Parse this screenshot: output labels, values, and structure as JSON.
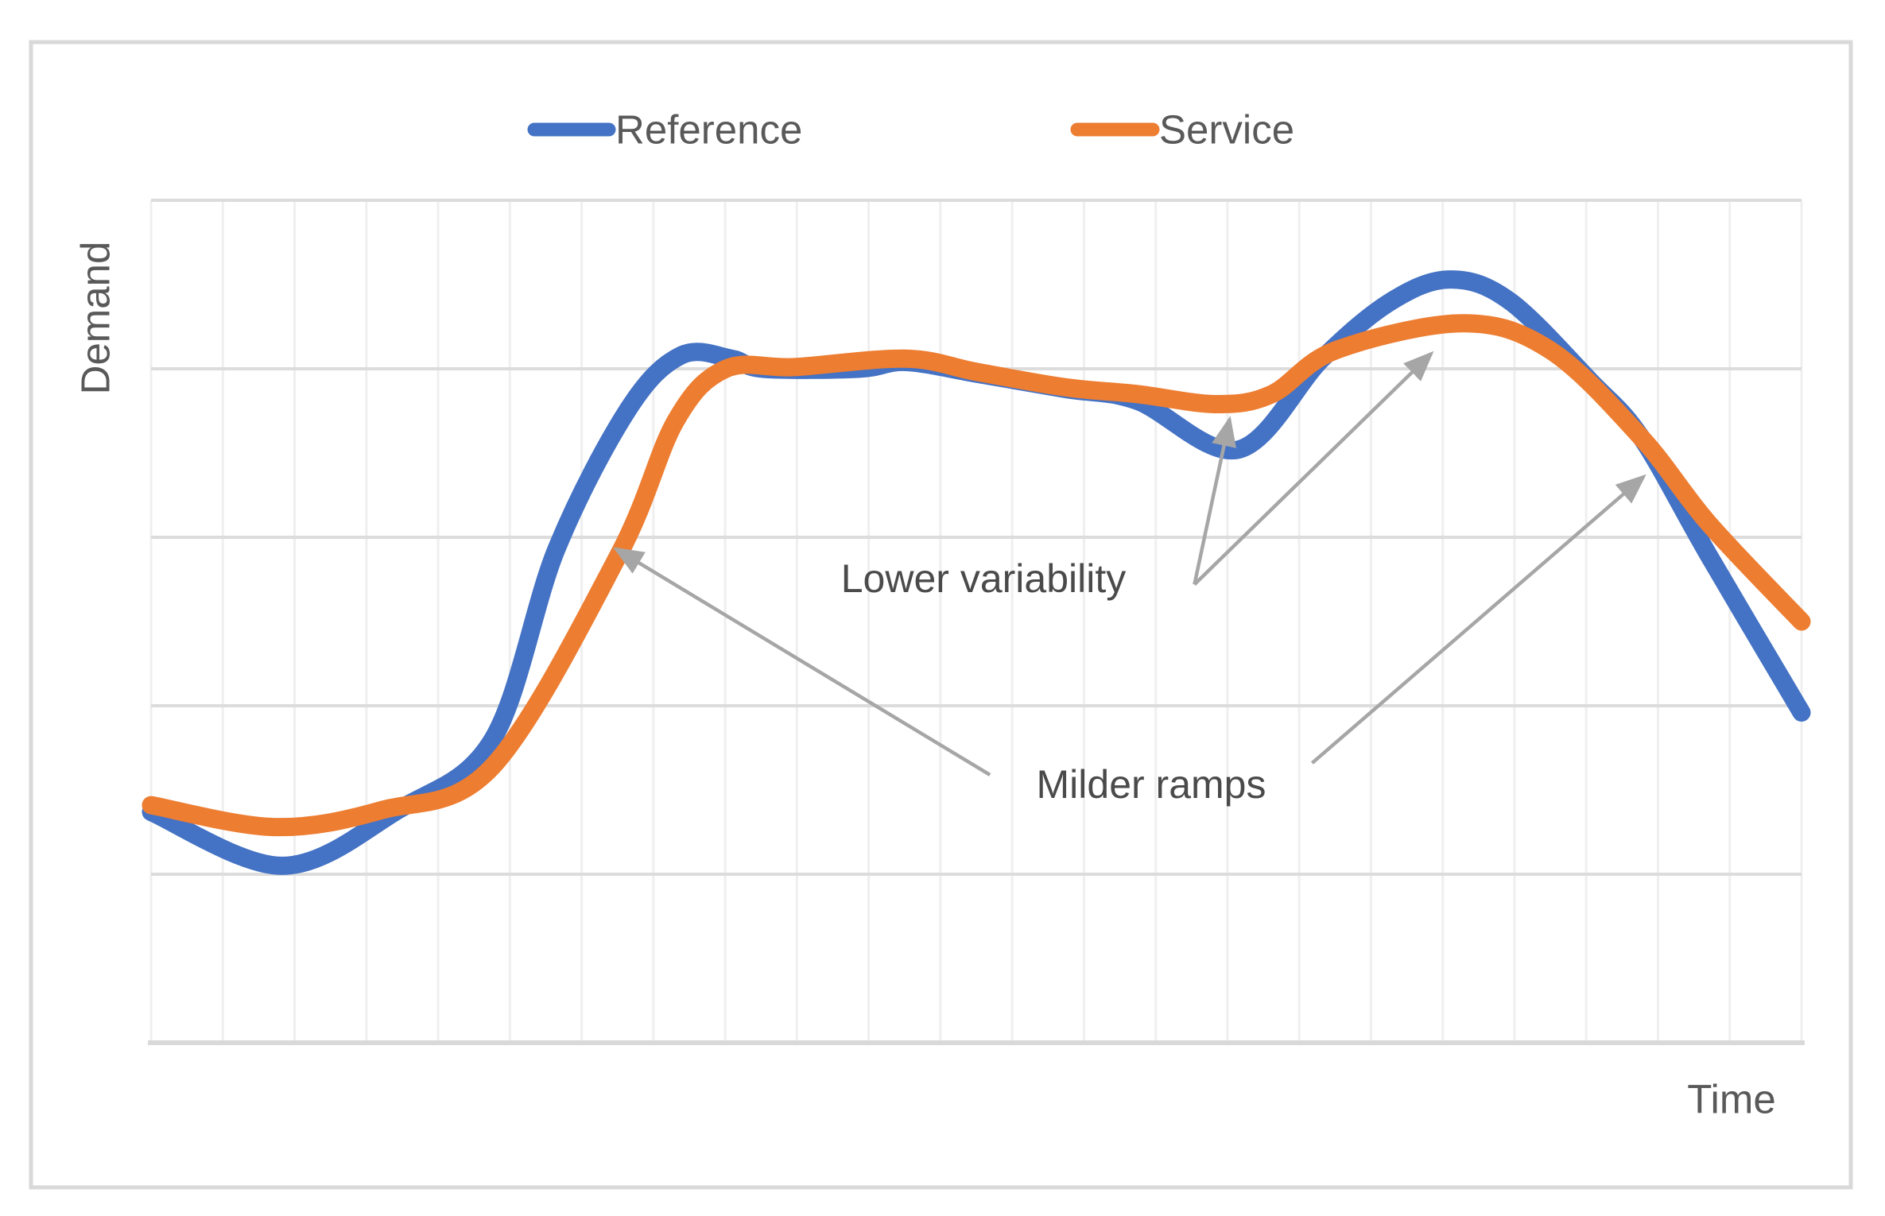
{
  "figure": {
    "y_axis_title": "Demand",
    "x_axis_title": "Time",
    "border_color": "#d9d9d9",
    "background": "#ffffff"
  },
  "legend": {
    "items": [
      {
        "label": "Reference",
        "color": "#4472C4"
      },
      {
        "label": "Service",
        "color": "#ED7D31"
      }
    ]
  },
  "chart_data": {
    "type": "line",
    "title": "",
    "xlabel": "Time",
    "ylabel": "Demand",
    "x_range": [
      0,
      23
    ],
    "y_range": [
      0,
      5
    ],
    "grid": {
      "vertical_lines": 24,
      "horizontal_lines": 6,
      "v_color": "#efefef",
      "h_color": "#dcdcdc",
      "axis_color": "#d9d9d9"
    },
    "legend_position": "top-center",
    "series": [
      {
        "name": "Reference",
        "color": "#4472C4",
        "points": [
          [
            0,
            1.37
          ],
          [
            1.83,
            1.05
          ],
          [
            3.44,
            1.38
          ],
          [
            4.76,
            1.8
          ],
          [
            5.65,
            2.93
          ],
          [
            6.65,
            3.76
          ],
          [
            7.39,
            4.08
          ],
          [
            8.09,
            4.06
          ],
          [
            8.53,
            4.0
          ],
          [
            9.86,
            4.0
          ],
          [
            10.52,
            4.04
          ],
          [
            11.52,
            3.97
          ],
          [
            12.74,
            3.88
          ],
          [
            13.74,
            3.81
          ],
          [
            15.15,
            3.52
          ],
          [
            16.32,
            4.06
          ],
          [
            17.28,
            4.4
          ],
          [
            18.11,
            4.53
          ],
          [
            18.94,
            4.4
          ],
          [
            20.05,
            3.93
          ],
          [
            20.77,
            3.59
          ],
          [
            21.71,
            2.89
          ],
          [
            23,
            1.96
          ]
        ]
      },
      {
        "name": "Service",
        "color": "#ED7D31",
        "points": [
          [
            0,
            1.41
          ],
          [
            1.72,
            1.28
          ],
          [
            3.21,
            1.38
          ],
          [
            4.76,
            1.64
          ],
          [
            6.51,
            2.89
          ],
          [
            7.31,
            3.69
          ],
          [
            8.01,
            4.0
          ],
          [
            8.97,
            4.01
          ],
          [
            10.52,
            4.06
          ],
          [
            11.52,
            3.98
          ],
          [
            12.74,
            3.89
          ],
          [
            13.74,
            3.85
          ],
          [
            14.85,
            3.79
          ],
          [
            15.62,
            3.85
          ],
          [
            16.51,
            4.11
          ],
          [
            18.28,
            4.27
          ],
          [
            19.5,
            4.11
          ],
          [
            20.77,
            3.59
          ],
          [
            21.71,
            3.08
          ],
          [
            23,
            2.5
          ]
        ]
      }
    ],
    "annotations": [
      {
        "text": "Lower variability",
        "arrow_color": "#a6a6a6",
        "arrows": [
          {
            "from": [
              14.54,
              2.72
            ],
            "to": [
              15.03,
              3.7
            ]
          },
          {
            "from": [
              14.54,
              2.72
            ],
            "to": [
              17.84,
              4.09
            ]
          }
        ]
      },
      {
        "text": "Milder ramps",
        "arrow_color": "#a6a6a6",
        "arrows": [
          {
            "from": [
              11.69,
              1.59
            ],
            "to": [
              6.48,
              2.93
            ]
          },
          {
            "from": [
              16.18,
              1.66
            ],
            "to": [
              20.8,
              3.36
            ]
          }
        ]
      }
    ]
  }
}
